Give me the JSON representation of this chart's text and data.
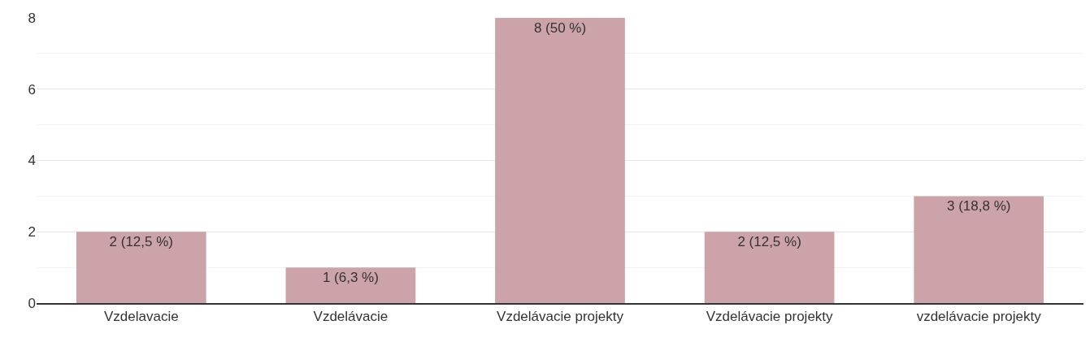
{
  "chart_data": {
    "type": "bar",
    "categories": [
      "Vzdelavacie",
      "Vzdelávacie",
      "Vzdelávacie projekty",
      "Vzdelávacie projekty",
      "vzdelávacie projekty"
    ],
    "values": [
      2,
      1,
      8,
      2,
      3
    ],
    "value_labels": [
      "2 (12,5 %)",
      "1 (6,3 %)",
      "8 (50 %)",
      "2 (12,5 %)",
      "3 (18,8 %)"
    ],
    "color": "#cca3a9",
    "ylim": [
      0,
      8
    ],
    "yticks": [
      0,
      2,
      4,
      6,
      8
    ],
    "grid": "y"
  }
}
